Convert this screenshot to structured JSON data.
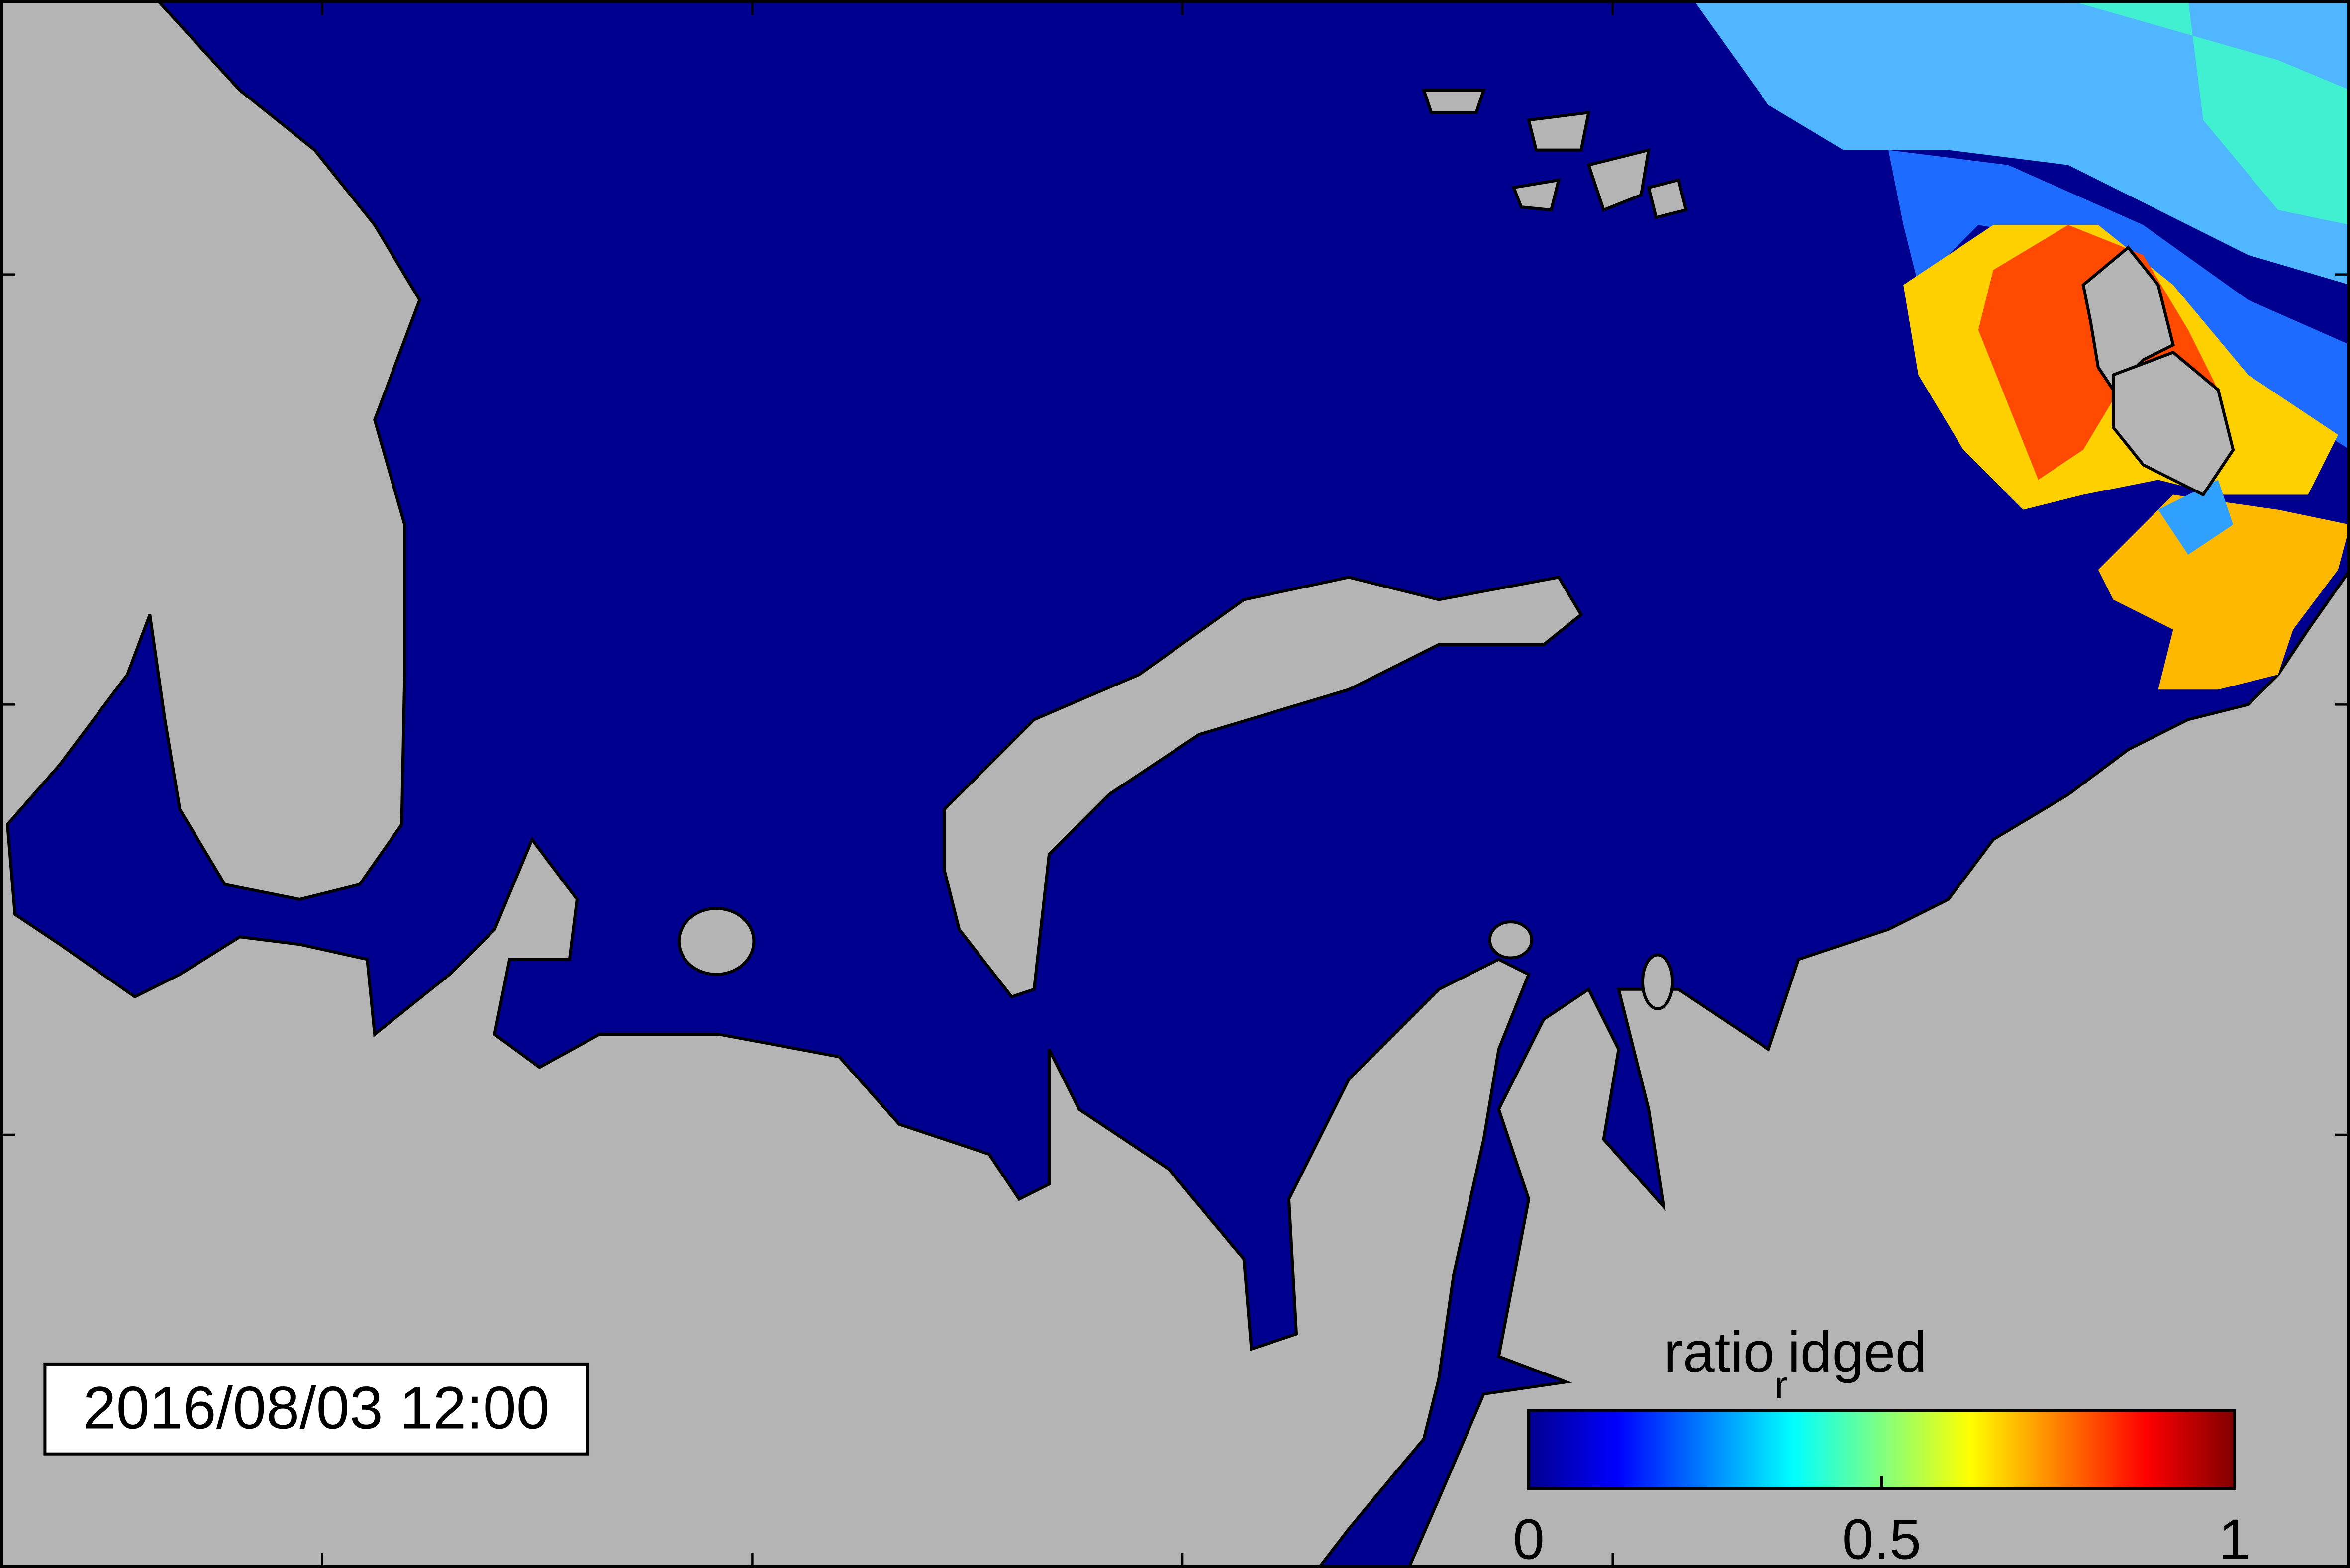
{
  "timestamp": "2016/08/03 12:00",
  "colorbar": {
    "label": {
      "main": "ratio",
      "subscript": "r",
      "rest": "idged"
    },
    "range": [
      0,
      1
    ],
    "ticks": [
      0,
      0.5,
      1
    ]
  }
}
